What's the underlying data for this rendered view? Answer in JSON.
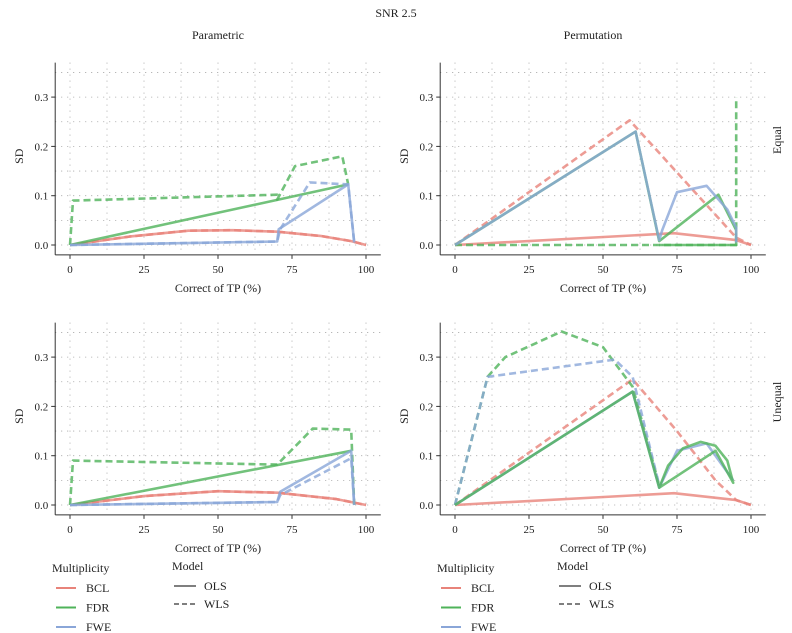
{
  "chart_data": {
    "type": "line",
    "title": "SNR 2.5",
    "column_titles": [
      "Parametric",
      "Permutation"
    ],
    "row_titles": [
      "Equal",
      "Unequal"
    ],
    "xlabel": "Correct of TP (%)",
    "ylabel": "SD",
    "xlim": [
      -5,
      105
    ],
    "ylim": [
      -0.02,
      0.37
    ],
    "xticks": [
      0,
      25,
      50,
      75,
      100
    ],
    "xtick_labels": [
      "0",
      "25",
      "50",
      "75",
      "100"
    ],
    "yticks": [
      0,
      0.1,
      0.2,
      0.3
    ],
    "ytick_labels": [
      "0.0",
      "0.1",
      "0.2",
      "0.3"
    ],
    "grid": true,
    "legend": {
      "placement": "bottom",
      "multiplicity_title": "Multiplicity",
      "multiplicity": [
        {
          "label": "BCL",
          "color": "#e8837a"
        },
        {
          "label": "FDR",
          "color": "#4fb35a"
        },
        {
          "label": "FWE",
          "color": "#8aa6d8"
        }
      ],
      "model_title": "Model",
      "model": [
        {
          "label": "OLS",
          "dash": "solid"
        },
        {
          "label": "WLS",
          "dash": "dashed"
        }
      ]
    },
    "panels": [
      {
        "column": "Parametric",
        "row": "Equal",
        "series": [
          {
            "multiplicity": "BCL",
            "model": "OLS",
            "points": [
              [
                0,
                0
              ],
              [
                20,
                0.017
              ],
              [
                40,
                0.029
              ],
              [
                55,
                0.03
              ],
              [
                70,
                0.027
              ],
              [
                85,
                0.018
              ],
              [
                95,
                0.008
              ],
              [
                100,
                0
              ]
            ]
          },
          {
            "multiplicity": "BCL",
            "model": "WLS",
            "points": [
              [
                0,
                0
              ],
              [
                20,
                0.017
              ],
              [
                40,
                0.029
              ],
              [
                55,
                0.03
              ],
              [
                70,
                0.027
              ],
              [
                85,
                0.018
              ],
              [
                95,
                0.008
              ],
              [
                100,
                0
              ]
            ]
          },
          {
            "multiplicity": "FDR",
            "model": "OLS",
            "points": [
              [
                0,
                0
              ],
              [
                94,
                0.123
              ]
            ]
          },
          {
            "multiplicity": "FDR",
            "model": "WLS",
            "points": [
              [
                0,
                0
              ],
              [
                1,
                0.09
              ],
              [
                70,
                0.102
              ],
              [
                70,
                0.092
              ],
              [
                76,
                0.16
              ],
              [
                92,
                0.18
              ],
              [
                94,
                0.123
              ]
            ]
          },
          {
            "multiplicity": "FWE",
            "model": "OLS",
            "points": [
              [
                0,
                0
              ],
              [
                70,
                0.007
              ],
              [
                70.5,
                0.032
              ],
              [
                94,
                0.123
              ],
              [
                96,
                0.005
              ]
            ]
          },
          {
            "multiplicity": "FWE",
            "model": "WLS",
            "points": [
              [
                0,
                0
              ],
              [
                70,
                0.007
              ],
              [
                71,
                0.032
              ],
              [
                81,
                0.127
              ],
              [
                94,
                0.123
              ],
              [
                96,
                0.005
              ]
            ]
          }
        ]
      },
      {
        "column": "Permutation",
        "row": "Equal",
        "series": [
          {
            "multiplicity": "BCL",
            "model": "OLS",
            "points": [
              [
                0,
                0
              ],
              [
                74,
                0.024
              ],
              [
                95,
                0.01
              ],
              [
                100,
                0
              ]
            ]
          },
          {
            "multiplicity": "BCL",
            "model": "WLS",
            "points": [
              [
                0,
                0
              ],
              [
                59,
                0.253
              ],
              [
                95,
                0.015
              ],
              [
                100,
                0
              ]
            ]
          },
          {
            "multiplicity": "FDR",
            "model": "OLS",
            "points": [
              [
                0,
                0
              ],
              [
                61,
                0.23
              ],
              [
                69,
                0.008
              ],
              [
                89,
                0.102
              ],
              [
                95,
                0.03
              ],
              [
                95,
                0
              ],
              [
                69,
                0
              ]
            ]
          },
          {
            "multiplicity": "FDR",
            "model": "WLS",
            "points": [
              [
                0,
                0
              ],
              [
                95,
                0
              ],
              [
                95,
                0.3
              ]
            ]
          },
          {
            "multiplicity": "FWE",
            "model": "OLS",
            "points": [
              [
                0,
                0
              ],
              [
                61,
                0.23
              ],
              [
                69,
                0.01
              ],
              [
                70,
                0.03
              ],
              [
                75,
                0.107
              ],
              [
                85,
                0.12
              ],
              [
                92,
                0.072
              ],
              [
                95,
                0.035
              ],
              [
                95,
                0.005
              ]
            ]
          }
        ]
      },
      {
        "column": "Parametric",
        "row": "Unequal",
        "series": [
          {
            "multiplicity": "BCL",
            "model": "OLS",
            "points": [
              [
                0,
                0
              ],
              [
                25,
                0.018
              ],
              [
                50,
                0.028
              ],
              [
                70,
                0.025
              ],
              [
                90,
                0.012
              ],
              [
                100,
                0
              ]
            ]
          },
          {
            "multiplicity": "BCL",
            "model": "WLS",
            "points": [
              [
                0,
                0
              ],
              [
                25,
                0.018
              ],
              [
                50,
                0.028
              ],
              [
                70,
                0.025
              ],
              [
                90,
                0.012
              ],
              [
                100,
                0
              ]
            ]
          },
          {
            "multiplicity": "FDR",
            "model": "OLS",
            "points": [
              [
                0,
                0
              ],
              [
                95,
                0.11
              ]
            ]
          },
          {
            "multiplicity": "FDR",
            "model": "WLS",
            "points": [
              [
                0,
                0
              ],
              [
                1,
                0.09
              ],
              [
                70,
                0.082
              ],
              [
                82,
                0.155
              ],
              [
                95,
                0.153
              ],
              [
                96,
                0
              ]
            ]
          },
          {
            "multiplicity": "FWE",
            "model": "OLS",
            "points": [
              [
                0,
                0
              ],
              [
                70,
                0.006
              ],
              [
                71,
                0.027
              ],
              [
                95,
                0.11
              ],
              [
                96,
                0
              ]
            ]
          },
          {
            "multiplicity": "FWE",
            "model": "WLS",
            "points": [
              [
                0,
                0
              ],
              [
                70,
                0.006
              ],
              [
                71,
                0.02
              ],
              [
                95,
                0.095
              ],
              [
                96,
                0
              ]
            ]
          }
        ]
      },
      {
        "column": "Permutation",
        "row": "Unequal",
        "series": [
          {
            "multiplicity": "BCL",
            "model": "OLS",
            "points": [
              [
                0,
                0
              ],
              [
                74,
                0.024
              ],
              [
                95,
                0.01
              ],
              [
                100,
                0
              ]
            ]
          },
          {
            "multiplicity": "BCL",
            "model": "WLS",
            "points": [
              [
                0,
                0
              ],
              [
                60,
                0.255
              ],
              [
                75,
                0.15
              ],
              [
                88,
                0.05
              ],
              [
                95,
                0.01
              ],
              [
                100,
                0
              ]
            ]
          },
          {
            "multiplicity": "FDR",
            "model": "WLS",
            "points": [
              [
                0,
                0
              ],
              [
                11,
                0.26
              ],
              [
                17,
                0.3
              ],
              [
                36,
                0.352
              ],
              [
                50,
                0.32
              ],
              [
                60,
                0.24
              ],
              [
                69,
                0.04
              ]
            ]
          },
          {
            "multiplicity": "FWE",
            "model": "WLS",
            "points": [
              [
                0,
                0
              ],
              [
                11,
                0.26
              ],
              [
                54,
                0.295
              ],
              [
                60,
                0.26
              ],
              [
                69,
                0.04
              ]
            ]
          },
          {
            "multiplicity": "FWE",
            "model": "OLS",
            "points": [
              [
                0,
                0
              ],
              [
                60,
                0.23
              ],
              [
                69,
                0.035
              ],
              [
                75,
                0.11
              ],
              [
                85,
                0.125
              ],
              [
                94,
                0.05
              ]
            ]
          },
          {
            "multiplicity": "FDR",
            "model": "OLS",
            "points": [
              [
                0,
                0
              ],
              [
                60,
                0.23
              ],
              [
                69,
                0.035
              ],
              [
                72,
                0.08
              ],
              [
                77,
                0.115
              ],
              [
                83,
                0.128
              ],
              [
                88,
                0.12
              ],
              [
                92,
                0.09
              ],
              [
                94,
                0.045
              ],
              [
                88,
                0.11
              ],
              [
                69,
                0.035
              ]
            ]
          }
        ]
      }
    ]
  }
}
